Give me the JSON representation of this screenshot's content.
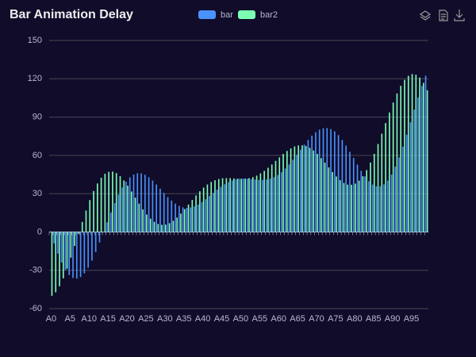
{
  "chart_data": {
    "type": "bar",
    "title": "Bar Animation Delay",
    "categories": [
      "A0",
      null,
      null,
      null,
      null,
      "A5",
      null,
      null,
      null,
      null,
      "A10",
      null,
      null,
      null,
      null,
      "A15",
      null,
      null,
      null,
      null,
      "A20",
      null,
      null,
      null,
      null,
      "A25",
      null,
      null,
      null,
      null,
      "A30",
      null,
      null,
      null,
      null,
      "A35",
      null,
      null,
      null,
      null,
      "A40",
      null,
      null,
      null,
      null,
      "A45",
      null,
      null,
      null,
      null,
      "A50",
      null,
      null,
      null,
      null,
      "A55",
      null,
      null,
      null,
      null,
      "A60",
      null,
      null,
      null,
      null,
      "A65",
      null,
      null,
      null,
      null,
      "A70",
      null,
      null,
      null,
      null,
      "A75",
      null,
      null,
      null,
      null,
      "A80",
      null,
      null,
      null,
      null,
      "A85",
      null,
      null,
      null,
      null,
      "A90",
      null,
      null,
      null,
      null,
      "A95",
      null,
      null,
      null,
      null
    ],
    "series": [
      {
        "name": "bar",
        "color": "#4992ff",
        "values": [
          0,
          -8.9,
          -17.0,
          -24.0,
          -29.7,
          -33.7,
          -36.0,
          -36.5,
          -35.3,
          -32.4,
          -28.0,
          -22.4,
          -15.7,
          -8.2,
          -0.4,
          7.6,
          15.3,
          22.6,
          29.2,
          34.8,
          39.4,
          42.8,
          45.0,
          46.0,
          45.9,
          44.8,
          42.9,
          40.3,
          37.2,
          33.9,
          30.6,
          27.4,
          24.6,
          22.2,
          20.4,
          19.3,
          18.9,
          19.2,
          20.1,
          21.5,
          23.4,
          25.7,
          28.2,
          30.7,
          33.2,
          35.4,
          37.4,
          39.1,
          40.3,
          41.2,
          41.7,
          41.8,
          41.7,
          41.4,
          41.1,
          40.8,
          40.8,
          41.1,
          41.8,
          42.9,
          44.6,
          46.9,
          49.7,
          52.9,
          56.6,
          60.5,
          64.5,
          68.4,
          72.1,
          75.4,
          78.1,
          80.1,
          81.2,
          81.4,
          80.6,
          78.8,
          75.9,
          72.1,
          67.7,
          62.8,
          58.0,
          52.8,
          47.9,
          43.5,
          39.8,
          37.2,
          35.8,
          35.8,
          37.3,
          40.3,
          45.0,
          51.1,
          58.4,
          66.8,
          76.2,
          85.9,
          95.8,
          105.4,
          114.4,
          122.4
        ]
      },
      {
        "name": "bar2",
        "color": "#7cffb2",
        "values": [
          -50,
          -47.2,
          -42.5,
          -36.3,
          -28.7,
          -20.1,
          -10.9,
          -1.5,
          7.9,
          16.8,
          25.0,
          32.1,
          38.0,
          42.5,
          45.6,
          47.1,
          47.3,
          46.1,
          43.7,
          40.4,
          36.3,
          31.7,
          26.9,
          22.2,
          17.7,
          13.7,
          10.4,
          7.9,
          6.3,
          5.6,
          5.8,
          6.9,
          8.8,
          11.3,
          14.4,
          17.9,
          21.5,
          25.1,
          28.6,
          31.9,
          34.8,
          37.2,
          39.2,
          40.6,
          41.5,
          42.1,
          42.2,
          42.2,
          42.0,
          41.8,
          41.7,
          41.8,
          42.2,
          43.0,
          44.2,
          45.9,
          47.9,
          50.3,
          52.9,
          55.7,
          58.4,
          61.1,
          63.5,
          65.5,
          67.0,
          67.8,
          67.9,
          67.3,
          65.9,
          63.8,
          61.1,
          57.8,
          54.3,
          50.6,
          46.9,
          43.5,
          40.6,
          38.4,
          37.1,
          37.0,
          37.9,
          40.2,
          43.7,
          48.5,
          54.4,
          61.2,
          68.9,
          77.0,
          85.3,
          93.6,
          101.4,
          108.5,
          114.5,
          119.2,
          122.3,
          123.7,
          123.2,
          120.9,
          116.8,
          111.0
        ]
      }
    ],
    "ylim": [
      -60,
      150
    ],
    "yticks": [
      -60,
      -30,
      0,
      30,
      60,
      90,
      120,
      150
    ],
    "grid": true
  }
}
